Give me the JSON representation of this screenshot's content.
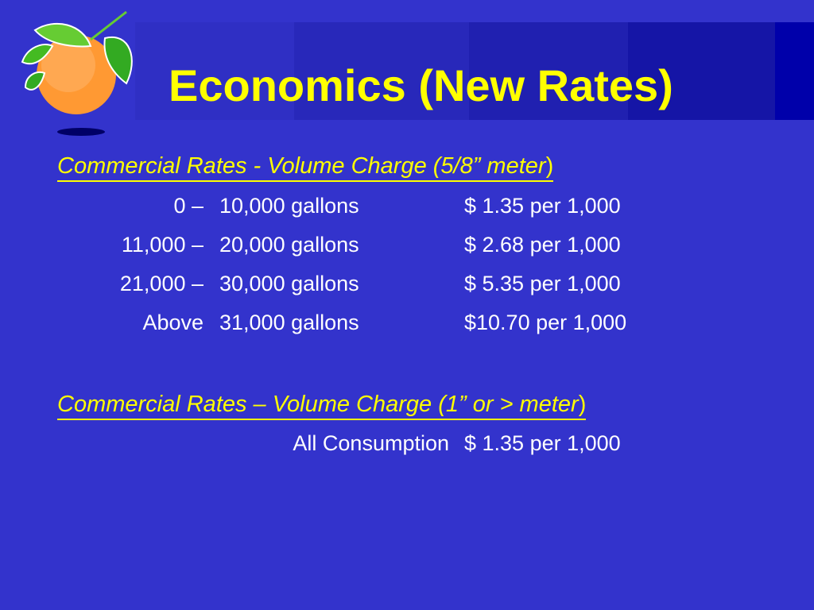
{
  "title": "Economics (New Rates)",
  "colors": {
    "background": "#3333cc",
    "title": "#ffff00",
    "text": "#ffffff",
    "header_bar_dark": "#0000aa"
  },
  "logo": {
    "icon": "orange-fruit-icon"
  },
  "section1": {
    "heading_italic": "Commercial Rates",
    "heading_rest": " - Volume Charge (5/8” meter",
    "heading_close": ")",
    "rows": [
      {
        "from": "0 –",
        "to": "10,000 gallons",
        "price": "$  1.35 per 1,000"
      },
      {
        "from": "11,000 –",
        "to": "20,000 gallons",
        "price": "$  2.68 per 1,000"
      },
      {
        "from": "21,000 –",
        "to": "30,000 gallons",
        "price": "$  5.35 per 1,000"
      },
      {
        "from": "Above",
        "to": "31,000 gallons",
        "price": "$10.70 per 1,000"
      }
    ]
  },
  "section2": {
    "heading_italic": "Commercial Rates",
    "heading_rest": " – Volume Charge (1” or > meter",
    "heading_close": ")",
    "row": {
      "label": "All Consumption",
      "price": "$  1.35 per 1,000"
    }
  }
}
